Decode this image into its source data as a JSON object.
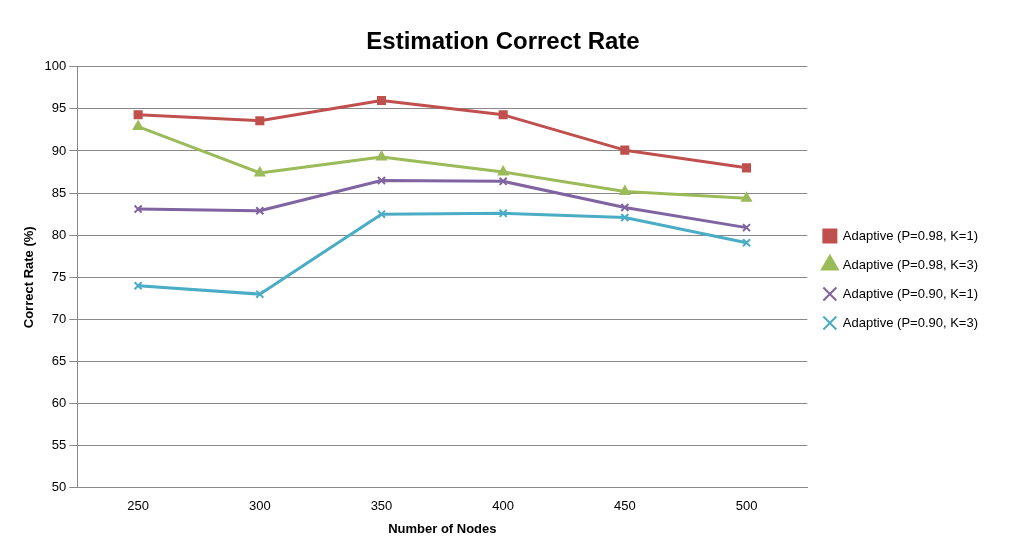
{
  "chart_data": {
    "type": "line",
    "title": "Estimation Correct Rate",
    "xlabel": "Number of Nodes",
    "ylabel": "Correct Rate (%)",
    "categories": [
      "250",
      "300",
      "350",
      "400",
      "450",
      "500"
    ],
    "series": [
      {
        "name": "Adaptive (P=0.98, K=1)",
        "color": "#c0504d",
        "marker": "square",
        "values": [
          94.3,
          93.6,
          96.0,
          94.3,
          90.1,
          88.0
        ]
      },
      {
        "name": "Adaptive (P=0.98, K=3)",
        "color": "#9bbb59",
        "marker": "triangle",
        "values": [
          92.9,
          87.4,
          89.3,
          87.5,
          85.2,
          84.4
        ]
      },
      {
        "name": "Adaptive (P=0.90, K=1)",
        "color": "#8064a2",
        "marker": "cross",
        "values": [
          83.1,
          82.9,
          86.5,
          86.4,
          83.3,
          80.9
        ]
      },
      {
        "name": "Adaptive (P=0.90, K=3)",
        "color": "#4bacc6",
        "marker": "cross",
        "values": [
          74.0,
          73.0,
          82.5,
          82.6,
          82.1,
          79.1
        ]
      }
    ],
    "ylim": [
      50,
      100
    ],
    "yticks": [
      50,
      55,
      60,
      65,
      70,
      75,
      80,
      85,
      90,
      95,
      100
    ],
    "grid": "y",
    "legend": "right",
    "line_style": "solid"
  }
}
